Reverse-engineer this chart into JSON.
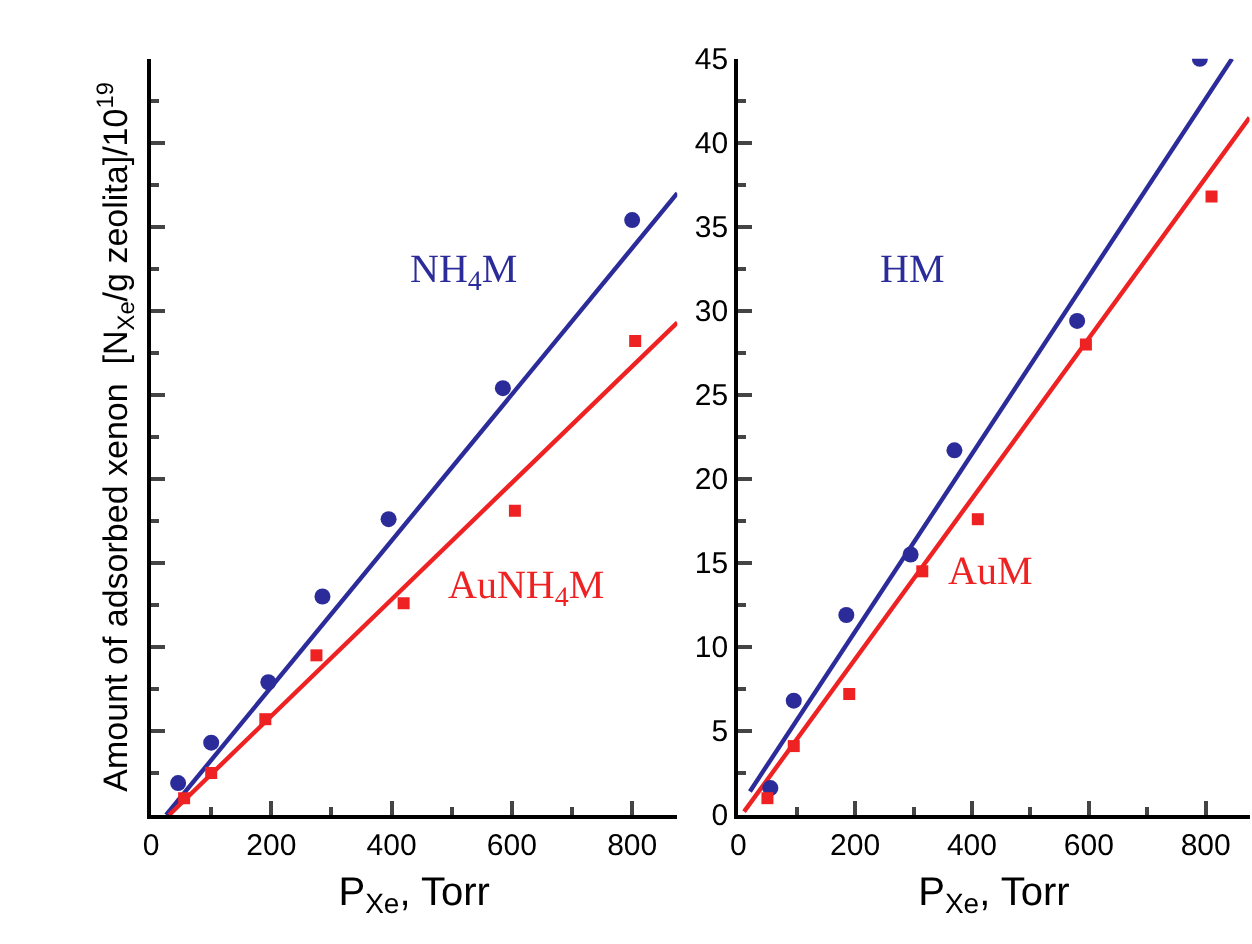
{
  "chart_data": [
    {
      "type": "scatter",
      "xlabel": "P$_{Xe}$, Torr",
      "ylabel": "Amount of adsorbed xenon  [N$_{Xe}$/g zeolita]/10$^{19}$",
      "xlim": [
        0,
        875
      ],
      "xticks": [
        0,
        200,
        400,
        600,
        800
      ],
      "ylim": [
        0,
        45
      ],
      "yticks": [
        0,
        5,
        10,
        15,
        20,
        25,
        30,
        35,
        40,
        45
      ],
      "tick_labels": "x",
      "series": [
        {
          "marker": "circle",
          "color": "#2b2b9a",
          "x": [
            45,
            100,
            195,
            285,
            395,
            585,
            800
          ],
          "values": [
            1.9,
            4.3,
            7.9,
            13.0,
            17.6,
            25.4,
            35.4
          ]
        },
        {
          "marker": "square",
          "color": "#ee2222",
          "x": [
            55,
            100,
            190,
            275,
            420,
            605,
            805
          ],
          "values": [
            1.0,
            2.5,
            5.7,
            9.5,
            12.6,
            18.1,
            28.2
          ]
        },
        {
          "type": "line",
          "color": "#2b2b9a",
          "x": [
            25,
            875
          ],
          "values": [
            0,
            37
          ]
        },
        {
          "type": "line",
          "color": "#ee2222",
          "x": [
            30,
            875
          ],
          "values": [
            0,
            29.3
          ]
        }
      ],
      "annotations": [
        "NH$_{4}$M",
        "AuNH$_{4}$M"
      ]
    },
    {
      "type": "scatter",
      "xlabel": "P$_{Xe}$, Torr",
      "xlim": [
        0,
        875
      ],
      "xticks": [
        0,
        200,
        400,
        600,
        800
      ],
      "ylim": [
        0,
        45
      ],
      "yticks": [
        0,
        5,
        10,
        15,
        20,
        25,
        30,
        35,
        40,
        45
      ],
      "series": [
        {
          "marker": "circle",
          "color": "#2b2b9a",
          "x": [
            55,
            95,
            185,
            295,
            370,
            580,
            790
          ],
          "values": [
            1.6,
            6.8,
            11.9,
            15.5,
            21.7,
            29.4,
            45
          ]
        },
        {
          "marker": "square",
          "color": "#ee2222",
          "x": [
            50,
            95,
            190,
            315,
            410,
            595,
            810
          ],
          "values": [
            1.0,
            4.1,
            7.2,
            14.5,
            17.6,
            28.0,
            36.8
          ]
        },
        {
          "type": "line",
          "color": "#2b2b9a",
          "x": [
            20,
            845
          ],
          "values": [
            1.4,
            45
          ]
        },
        {
          "type": "line",
          "color": "#ee2222",
          "x": [
            10,
            875
          ],
          "values": [
            0.2,
            41.5
          ]
        }
      ],
      "annotations": [
        "HM",
        "AuM"
      ]
    }
  ]
}
